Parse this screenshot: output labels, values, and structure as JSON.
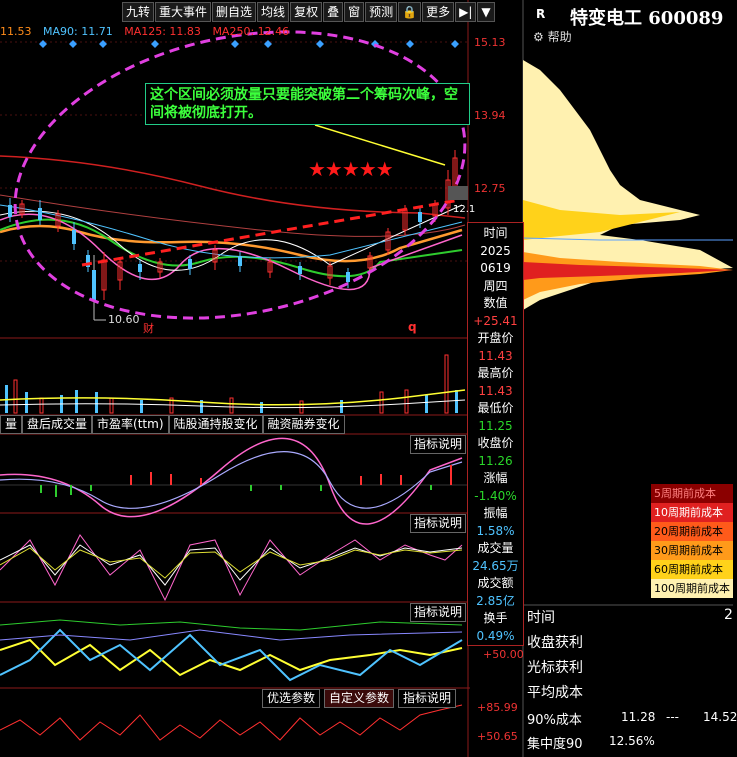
{
  "toolbar": [
    "九转",
    "重大事件",
    "删自选",
    "均线",
    "复权",
    "叠",
    "窗",
    "预测",
    "更多"
  ],
  "ma": [
    {
      "label": "11.53",
      "color": "#ff8c1a"
    },
    {
      "label": "MA90: 11.71",
      "color": "#4fc3ff"
    },
    {
      "label": "MA125: 11.83",
      "color": "#ff3030"
    },
    {
      "label": "MA250: 12.46",
      "color": "#ff3030"
    }
  ],
  "stock": {
    "badge": "R",
    "title": "特变电工 600089",
    "help": "帮助"
  },
  "price_axis": [
    "15.13",
    "13.94",
    "12.75",
    "12.1"
  ],
  "annotation": "这个区间必须放量只要能突破第二个筹码次峰，空间将被彻底打开。",
  "stars": "★★★★★",
  "low_label": "10.60",
  "markers": {
    "cai": "财",
    "q": "q"
  },
  "info": {
    "time_label": "时间",
    "year": "2025",
    "date": "0619",
    "weekday": "周四",
    "value_label": "数值",
    "value": "+25.41",
    "open_label": "开盘价",
    "open": "11.43",
    "high_label": "最高价",
    "high": "11.43",
    "low_label": "最低价",
    "low": "11.25",
    "close_label": "收盘价",
    "close": "11.26",
    "change_label": "涨幅",
    "change": "-1.40%",
    "amp_label": "振幅",
    "amp": "1.58%",
    "vol_label": "成交量",
    "vol": "24.65万",
    "amt_label": "成交额",
    "amt": "2.85亿",
    "turn_label": "换手",
    "turn": "0.49%"
  },
  "indicator_tabs": [
    "量",
    "盘后成交量",
    "市盈率(ttm)",
    "陆股通持股变化",
    "融资融券变化"
  ],
  "explain_label": "指标说明",
  "bottom_tabs": [
    "优选参数",
    "自定义参数",
    "指标说明"
  ],
  "axis_values": {
    "ind3": "+50.00",
    "ind4_top": "+85.99",
    "ind4_bot": "+50.65"
  },
  "chip_legend": [
    {
      "label": "5周期前成本",
      "color": "#8b0000"
    },
    {
      "label": "10周期前成本",
      "color": "#e02020"
    },
    {
      "label": "20周期前成本",
      "color": "#ff5a1a"
    },
    {
      "label": "30周期前成本",
      "color": "#ff9a1a"
    },
    {
      "label": "60周期前成本",
      "color": "#ffd21a"
    },
    {
      "label": "100周期前成本",
      "color": "#fff1b0"
    }
  ],
  "stats": {
    "time_label": "时间",
    "time_value": "2",
    "close_profit_label": "收盘获利",
    "cursor_profit_label": "光标获利",
    "avg_cost_label": "平均成本",
    "cost90_label": "90%成本",
    "cost90_low": "11.28",
    "cost90_sep": "---",
    "cost90_high": "14.52",
    "conc90_label": "集中度90",
    "conc90_value": "12.56%"
  }
}
